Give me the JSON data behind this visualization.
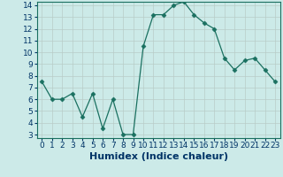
{
  "x": [
    0,
    1,
    2,
    3,
    4,
    5,
    6,
    7,
    8,
    9,
    10,
    11,
    12,
    13,
    14,
    15,
    16,
    17,
    18,
    19,
    20,
    21,
    22,
    23
  ],
  "y": [
    7.5,
    6.0,
    6.0,
    6.5,
    4.5,
    6.5,
    3.5,
    6.0,
    3.0,
    3.0,
    10.5,
    13.2,
    13.2,
    14.0,
    14.3,
    13.2,
    12.5,
    12.0,
    9.5,
    8.5,
    9.3,
    9.5,
    8.5,
    7.5
  ],
  "xlabel": "Humidex (Indice chaleur)",
  "ylim_min": 3,
  "ylim_max": 14,
  "xlim_min": 0,
  "xlim_max": 23,
  "yticks": [
    3,
    4,
    5,
    6,
    7,
    8,
    9,
    10,
    11,
    12,
    13,
    14
  ],
  "xticks": [
    0,
    1,
    2,
    3,
    4,
    5,
    6,
    7,
    8,
    9,
    10,
    11,
    12,
    13,
    14,
    15,
    16,
    17,
    18,
    19,
    20,
    21,
    22,
    23
  ],
  "xtick_labels": [
    "0",
    "1",
    "2",
    "3",
    "4",
    "5",
    "6",
    "7",
    "8",
    "9",
    "10",
    "11",
    "12",
    "13",
    "14",
    "15",
    "16",
    "17",
    "18",
    "19",
    "20",
    "21",
    "22",
    "23"
  ],
  "line_color": "#1a7060",
  "marker": "D",
  "marker_size": 2.5,
  "bg_color": "#cceae8",
  "grid_color": "#b8ccc8",
  "xlabel_fontsize": 8,
  "tick_fontsize": 6.5,
  "label_color": "#003366"
}
